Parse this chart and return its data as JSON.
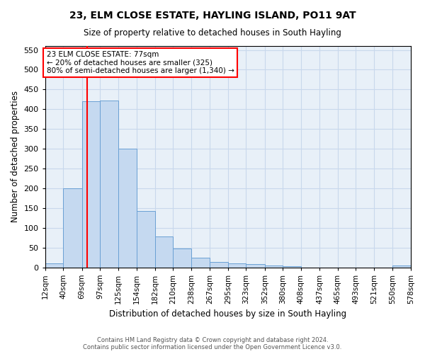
{
  "title": "23, ELM CLOSE ESTATE, HAYLING ISLAND, PO11 9AT",
  "subtitle": "Size of property relative to detached houses in South Hayling",
  "xlabel": "Distribution of detached houses by size in South Hayling",
  "ylabel": "Number of detached properties",
  "bar_color": "#c5d9f0",
  "bar_edgecolor": "#6aa0d4",
  "grid_color": "#c8d8ec",
  "background_color": "#e8f0f8",
  "property_line_x": 77,
  "bin_edges": [
    12,
    40,
    69,
    97,
    125,
    154,
    182,
    210,
    238,
    267,
    295,
    323,
    352,
    380,
    408,
    437,
    465,
    493,
    521,
    550,
    578
  ],
  "bar_heights": [
    10,
    200,
    420,
    422,
    300,
    143,
    78,
    48,
    24,
    13,
    10,
    8,
    5,
    3,
    0,
    0,
    0,
    0,
    0,
    4
  ],
  "ylim": [
    0,
    560
  ],
  "yticks": [
    0,
    50,
    100,
    150,
    200,
    250,
    300,
    350,
    400,
    450,
    500,
    550
  ],
  "annotation_text": "23 ELM CLOSE ESTATE: 77sqm\n← 20% of detached houses are smaller (325)\n80% of semi-detached houses are larger (1,340) →",
  "annotation_box_color": "white",
  "annotation_box_edgecolor": "red",
  "footer_text": "Contains HM Land Registry data © Crown copyright and database right 2024.\nContains public sector information licensed under the Open Government Licence v3.0.",
  "tick_labels": [
    "12sqm",
    "40sqm",
    "69sqm",
    "97sqm",
    "125sqm",
    "154sqm",
    "182sqm",
    "210sqm",
    "238sqm",
    "267sqm",
    "295sqm",
    "323sqm",
    "352sqm",
    "380sqm",
    "408sqm",
    "437sqm",
    "465sqm",
    "493sqm",
    "521sqm",
    "550sqm",
    "578sqm"
  ]
}
